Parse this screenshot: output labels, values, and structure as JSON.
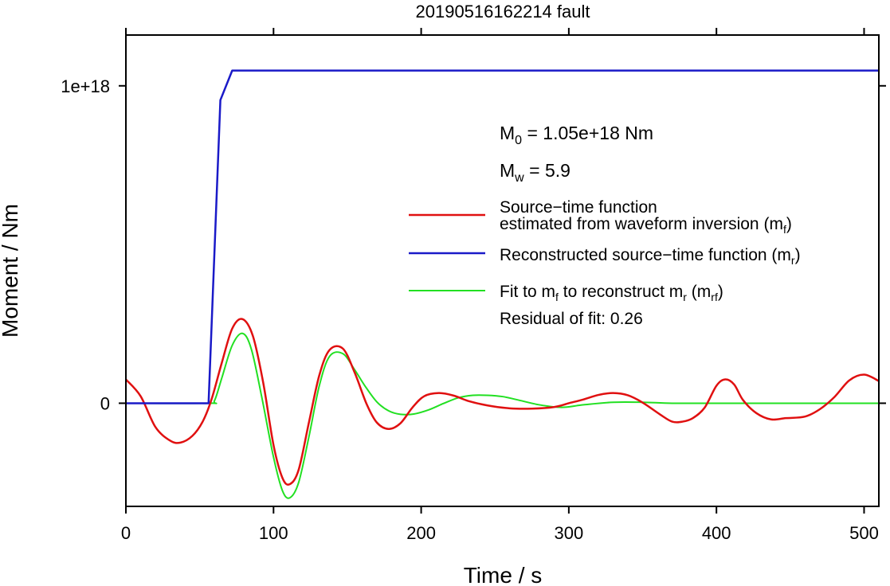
{
  "chart_data": {
    "type": "line",
    "title": "20190516162214 fault",
    "xlabel": "Time / s",
    "ylabel": "Moment / Nm",
    "xlim": [
      0,
      510
    ],
    "ylim": [
      -3.25e+17,
      1.16e+18
    ],
    "x_ticks": [
      0,
      100,
      200,
      300,
      400,
      500
    ],
    "x_tick_labels": [
      "0",
      "100",
      "200",
      "300",
      "400",
      "500"
    ],
    "y_ticks": [
      0,
      1e+18
    ],
    "y_tick_labels": [
      "0",
      "1e+18"
    ],
    "grid": false,
    "annotations": {
      "m0": {
        "prefix": "M",
        "sub": "0",
        "text": " = 1.05e+18 Nm"
      },
      "mw": {
        "prefix": "M",
        "sub": "w",
        "text": " = 5.9"
      },
      "residual": "Residual of fit: 0.26"
    },
    "legend": {
      "placement": "right",
      "entries": [
        {
          "line1": "Source−time function",
          "line2": "estimated from waveform inversion (m",
          "line2_sub": "f",
          "line2_end": ")"
        },
        {
          "text": "Reconstructed source−time function (m",
          "sub": "r",
          "end": ")"
        },
        {
          "text": "Fit to m",
          "sub1": "f",
          "mid": " to reconstruct m",
          "sub2": "r",
          "mid2": " (m",
          "sub3": "rf",
          "end": ")"
        }
      ]
    },
    "series": [
      {
        "name": "Source−time function estimated from waveform inversion (mf)",
        "color": "#e01010",
        "x": [
          0,
          10,
          20,
          30,
          37,
          45,
          52,
          58,
          65,
          72,
          79,
          86,
          93,
          100,
          106,
          111,
          117,
          124,
          131,
          138,
          147,
          155,
          163,
          170,
          178,
          186,
          194,
          202,
          212,
          222,
          232,
          245,
          260,
          275,
          290,
          300,
          310,
          320,
          330,
          340,
          350,
          362,
          370,
          377,
          384,
          392,
          400,
          406,
          412,
          418,
          427,
          437,
          447,
          460,
          470,
          480,
          490,
          500,
          510
        ],
        "y": [
          7.5e+16,
          2.2e+16,
          -7.5e+16,
          -1.18e+17,
          -1.24e+17,
          -1.03e+17,
          -5.8e+16,
          1.2e+16,
          1.28e+17,
          2.35e+17,
          2.65e+17,
          2.12e+17,
          6.5e+16,
          -1.32e+17,
          -2.35e+17,
          -2.55e+17,
          -2.1e+17,
          -6e+16,
          8.8e+16,
          1.68e+17,
          1.72e+17,
          9.6e+16,
          -2000000000000000.0,
          -6.1e+16,
          -8.1e+16,
          -6.3e+16,
          -1.4e+16,
          2.2e+16,
          3.2e+16,
          2.4e+16,
          7000000000000000.0,
          -7000000000000000.0,
          -1.6e+16,
          -1.7e+16,
          -1.2e+16,
          0,
          1.2e+16,
          2.6e+16,
          3.2e+16,
          2.5e+16,
          2000000000000000.0,
          -3.6e+16,
          -5.8e+16,
          -5.8e+16,
          -4.7e+16,
          -1.4e+16,
          5.5e+16,
          7.5e+16,
          5.9e+16,
          1e+16,
          -3.1e+16,
          -5.1e+16,
          -4.7e+16,
          -4.2e+16,
          -1.9e+16,
          2e+16,
          7.2e+16,
          9e+16,
          7e+16
        ]
      },
      {
        "name": "Reconstructed source−time function (mr)",
        "color": "#1a1ac8",
        "x": [
          0,
          56,
          64,
          72,
          510
        ],
        "y": [
          0,
          0,
          9.55e+17,
          1.048e+18,
          1.048e+18
        ]
      },
      {
        "name": "Fit to mf to reconstruct mr (mrf)",
        "color": "#22e022",
        "x": [
          0,
          56,
          60,
          65,
          72,
          79,
          85,
          92,
          100,
          106,
          111,
          117,
          124,
          131,
          138,
          147,
          155,
          162,
          170,
          178,
          186,
          195,
          205,
          215,
          225,
          235,
          245,
          255,
          265,
          280,
          295,
          310,
          330,
          350,
          370,
          400,
          430,
          460,
          510
        ],
        "y": [
          0,
          0,
          8000000000000000.0,
          8e+16,
          1.82e+17,
          2.2e+17,
          1.7e+17,
          2e+16,
          -1.7e+17,
          -2.75e+17,
          -2.98e+17,
          -2.5e+17,
          -1.05e+17,
          5.5e+16,
          1.48e+17,
          1.56e+17,
          1.05e+17,
          5.4e+16,
          4000000000000000.0,
          -2.4e+16,
          -3.5e+16,
          -3.4e+16,
          -2.1e+16,
          -1000000000000000.0,
          1.7e+16,
          2.5e+16,
          2.5e+16,
          2.1e+16,
          1.1e+16,
          -5000000000000000.0,
          -1.3e+16,
          -5000000000000000.0,
          3000000000000000.0,
          3000000000000000.0,
          0,
          0,
          0,
          0,
          0
        ]
      }
    ]
  }
}
